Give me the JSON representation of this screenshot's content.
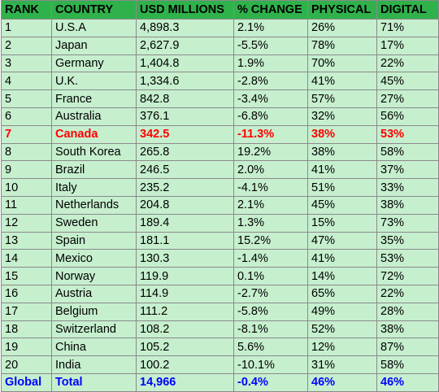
{
  "headers": [
    "RANK",
    "COUNTRY",
    "USD MILLIONS",
    "% CHANGE",
    "PHYSICAL",
    "DIGITAL"
  ],
  "rows": [
    [
      "1",
      "U.S.A",
      "4,898.3",
      "2.1%",
      "26%",
      "71%"
    ],
    [
      "2",
      "Japan",
      "2,627.9",
      "-5.5%",
      "78%",
      "17%"
    ],
    [
      "3",
      "Germany",
      "1,404.8",
      "1.9%",
      "70%",
      "22%"
    ],
    [
      "4",
      "U.K.",
      "1,334.6",
      "-2.8%",
      "41%",
      "45%"
    ],
    [
      "5",
      "France",
      "842.8",
      "-3.4%",
      "57%",
      "27%"
    ],
    [
      "6",
      "Australia",
      "376.1",
      "-6.8%",
      "32%",
      "56%"
    ],
    [
      "7",
      "Canada",
      "342.5",
      "-11.3%",
      "38%",
      "53%"
    ],
    [
      "8",
      "South Korea",
      "265.8",
      "19.2%",
      "38%",
      "58%"
    ],
    [
      "9",
      "Brazil",
      "246.5",
      "2.0%",
      "41%",
      "37%"
    ],
    [
      "10",
      "Italy",
      "235.2",
      "-4.1%",
      "51%",
      "33%"
    ],
    [
      "11",
      "Netherlands",
      "204.8",
      "2.1%",
      "45%",
      "38%"
    ],
    [
      "12",
      "Sweden",
      "189.4",
      "1.3%",
      "15%",
      "73%"
    ],
    [
      "13",
      "Spain",
      "181.1",
      "15.2%",
      "47%",
      "35%"
    ],
    [
      "14",
      "Mexico",
      "130.3",
      "-1.4%",
      "41%",
      "53%"
    ],
    [
      "15",
      "Norway",
      "119.9",
      "0.1%",
      "14%",
      "72%"
    ],
    [
      "16",
      "Austria",
      "114.9",
      "-2.7%",
      "65%",
      "22%"
    ],
    [
      "17",
      "Belgium",
      "111.2",
      "-5.8%",
      "49%",
      "28%"
    ],
    [
      "18",
      "Switzerland",
      "108.2",
      "-8.1%",
      "52%",
      "38%"
    ],
    [
      "19",
      "China",
      "105.2",
      "5.6%",
      "12%",
      "87%"
    ],
    [
      "20",
      "India",
      "100.2",
      "-10.1%",
      "31%",
      "58%"
    ]
  ],
  "total": [
    "Global",
    "Total",
    "14,966",
    "-0.4%",
    "46%",
    "46%"
  ],
  "highlight_row_index": 6,
  "colors": {
    "header_bg": "#2fb24b",
    "row_bg": "#c6efce",
    "highlight_text": "#ff0000",
    "total_text": "#0000ff",
    "border": "#8a8a8a"
  }
}
